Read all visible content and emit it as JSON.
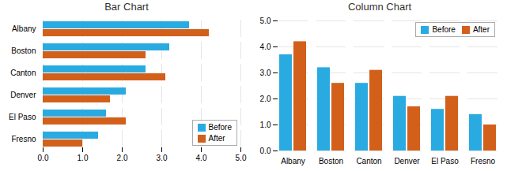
{
  "chart_data": [
    {
      "type": "bar",
      "orientation": "horizontal",
      "title": "Bar Chart",
      "categories": [
        "Albany",
        "Boston",
        "Canton",
        "Denver",
        "El Paso",
        "Fresno"
      ],
      "series": [
        {
          "name": "Before",
          "color": "#29ABE2",
          "values": [
            3.7,
            3.2,
            2.6,
            2.1,
            1.6,
            1.4
          ]
        },
        {
          "name": "After",
          "color": "#D2601A",
          "values": [
            4.2,
            2.6,
            3.1,
            1.7,
            2.1,
            1.0
          ]
        }
      ],
      "xlim": [
        0,
        5
      ],
      "xticks": [
        0,
        1,
        2,
        3,
        4,
        5
      ],
      "grid": true,
      "legend": "lower right"
    },
    {
      "type": "bar",
      "title": "Column Chart",
      "categories": [
        "Albany",
        "Boston",
        "Canton",
        "Denver",
        "El Paso",
        "Fresno"
      ],
      "series": [
        {
          "name": "Before",
          "color": "#29ABE2",
          "values": [
            3.7,
            3.2,
            2.6,
            2.1,
            1.6,
            1.4
          ]
        },
        {
          "name": "After",
          "color": "#D2601A",
          "values": [
            4.2,
            2.6,
            3.1,
            1.7,
            2.1,
            1.0
          ]
        }
      ],
      "ylim": [
        0,
        5
      ],
      "yticks": [
        0,
        1,
        2,
        3,
        4,
        5
      ],
      "grid": true,
      "legend": "upper right"
    }
  ]
}
